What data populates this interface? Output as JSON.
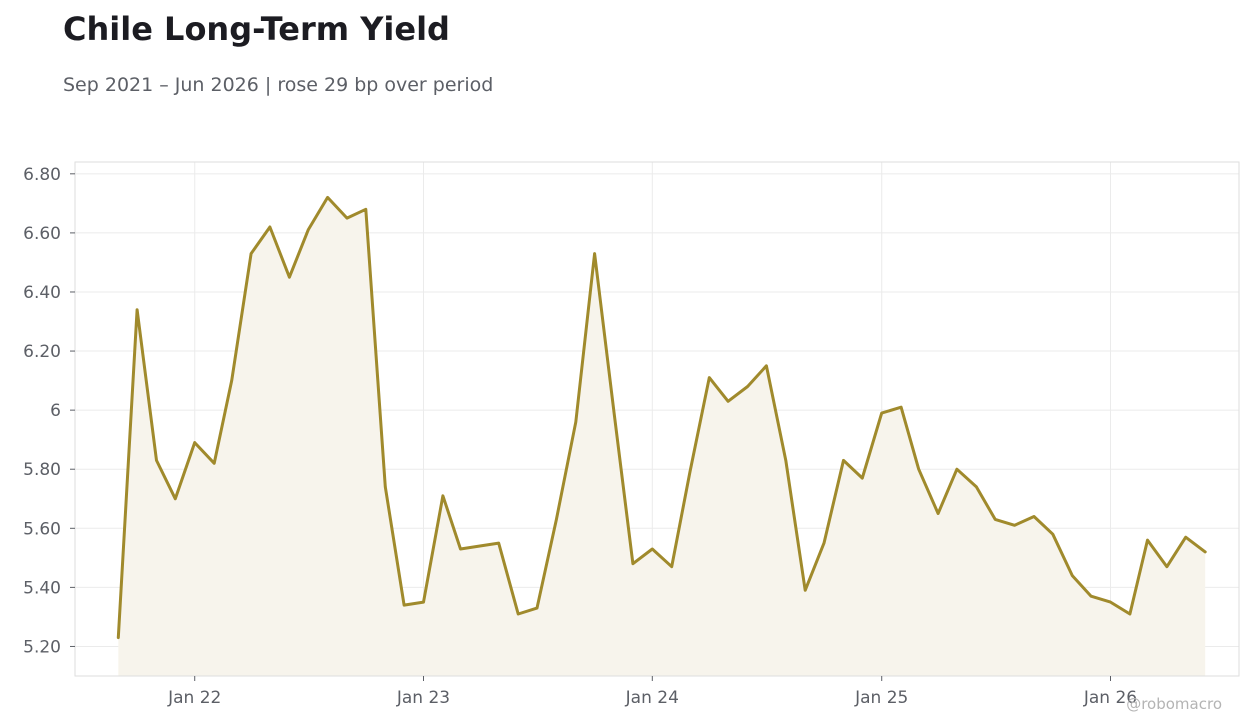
{
  "header": {
    "title": "Chile Long-Term Yield",
    "subtitle": "Sep 2021 – Jun 2026 | rose 29 bp over period"
  },
  "watermark": "@robomacro",
  "colors": {
    "line": "#a08a2c",
    "fill": "#f7f4ec",
    "grid": "#ebebeb",
    "frame": "#dedede"
  },
  "chart_data": {
    "type": "area",
    "title": "Chile Long-Term Yield",
    "subtitle": "Sep 2021 – Jun 2026 | rose 29 bp over period",
    "xlabel": "",
    "ylabel": "",
    "grid": true,
    "legend": "none",
    "ylim": [
      5.1,
      6.84
    ],
    "xlim": [
      "2021-06-24",
      "2026-07-25"
    ],
    "y_ticks": [
      5.2,
      5.4,
      5.6,
      5.8,
      6.0,
      6.2,
      6.4,
      6.6,
      6.8
    ],
    "y_tick_labels": [
      "5.20",
      "5.40",
      "5.60",
      "5.80",
      "6",
      "6.20",
      "6.40",
      "6.60",
      "6.80"
    ],
    "x_ticks": [
      "2022-01-01",
      "2023-01-01",
      "2024-01-01",
      "2025-01-01",
      "2026-01-01"
    ],
    "x_tick_labels": [
      "Jan 22",
      "Jan 23",
      "Jan 24",
      "Jan 25",
      "Jan 26"
    ],
    "series": [
      {
        "x": [
          "2021-09-01",
          "2021-10-01",
          "2021-11-01",
          "2021-12-01",
          "2022-01-01",
          "2022-02-01",
          "2022-03-01",
          "2022-04-01",
          "2022-05-01",
          "2022-06-01",
          "2022-07-01",
          "2022-08-01",
          "2022-09-01",
          "2022-10-01",
          "2022-11-01",
          "2022-12-01",
          "2023-01-01",
          "2023-02-01",
          "2023-03-01",
          "2023-04-01",
          "2023-05-01",
          "2023-06-01",
          "2023-07-01",
          "2023-08-01",
          "2023-09-01",
          "2023-10-01",
          "2023-11-01",
          "2023-12-01",
          "2024-01-01",
          "2024-02-01",
          "2024-03-01",
          "2024-04-01",
          "2024-05-01",
          "2024-06-01",
          "2024-07-01",
          "2024-08-01",
          "2024-09-01",
          "2024-10-01",
          "2024-11-01",
          "2024-12-01",
          "2025-01-01",
          "2025-02-01",
          "2025-03-01",
          "2025-04-01",
          "2025-05-01",
          "2025-06-01",
          "2025-07-01",
          "2025-08-01",
          "2025-09-01",
          "2025-10-01",
          "2025-11-01",
          "2025-12-01",
          "2026-01-01",
          "2026-02-01",
          "2026-03-01",
          "2026-04-01",
          "2026-05-01",
          "2026-06-01"
        ],
        "values": [
          5.23,
          6.34,
          5.83,
          5.7,
          5.89,
          5.82,
          6.1,
          6.53,
          6.62,
          6.45,
          6.61,
          6.72,
          6.65,
          6.68,
          5.74,
          5.34,
          5.35,
          5.71,
          5.53,
          5.54,
          5.55,
          5.31,
          5.33,
          5.63,
          5.96,
          6.53,
          5.99,
          5.48,
          5.53,
          5.47,
          5.79,
          6.11,
          6.03,
          6.08,
          6.15,
          5.83,
          5.39,
          5.55,
          5.83,
          5.77,
          5.99,
          6.01,
          5.8,
          5.65,
          5.8,
          5.74,
          5.63,
          5.61,
          5.64,
          5.58,
          5.44,
          5.37,
          5.35,
          5.31,
          5.56,
          5.47,
          5.57,
          5.52
        ]
      }
    ]
  }
}
